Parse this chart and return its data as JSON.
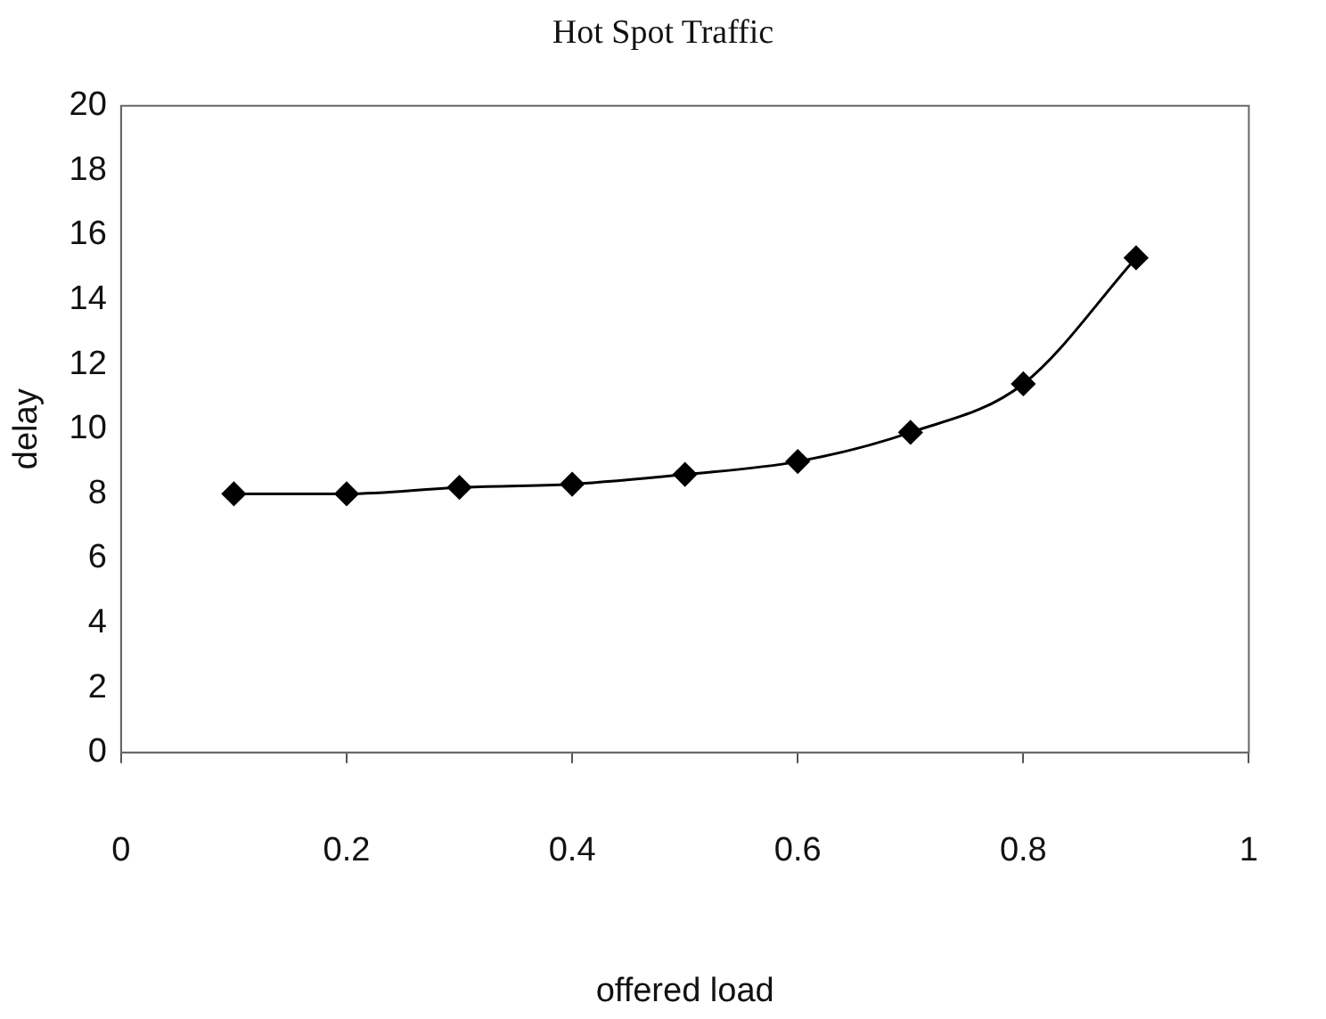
{
  "chart_data": {
    "type": "line",
    "title": "Hot Spot Traffic",
    "xlabel": "offered load",
    "ylabel": "delay",
    "x": [
      0.1,
      0.2,
      0.3,
      0.4,
      0.5,
      0.6,
      0.7,
      0.8,
      0.9
    ],
    "series": [
      {
        "color": "#000000",
        "values": [
          8.0,
          8.0,
          8.2,
          8.3,
          8.6,
          9.0,
          9.9,
          11.4,
          15.3
        ]
      }
    ],
    "xlim": [
      0,
      1
    ],
    "xticks": [
      0,
      0.2,
      0.4,
      0.6,
      0.8,
      1
    ],
    "ylim": [
      0,
      20
    ],
    "yticks": [
      0,
      2,
      4,
      6,
      8,
      10,
      12,
      14,
      16,
      18,
      20
    ],
    "grid": false,
    "legend": false,
    "marker": "diamond",
    "line_style": "solid"
  }
}
